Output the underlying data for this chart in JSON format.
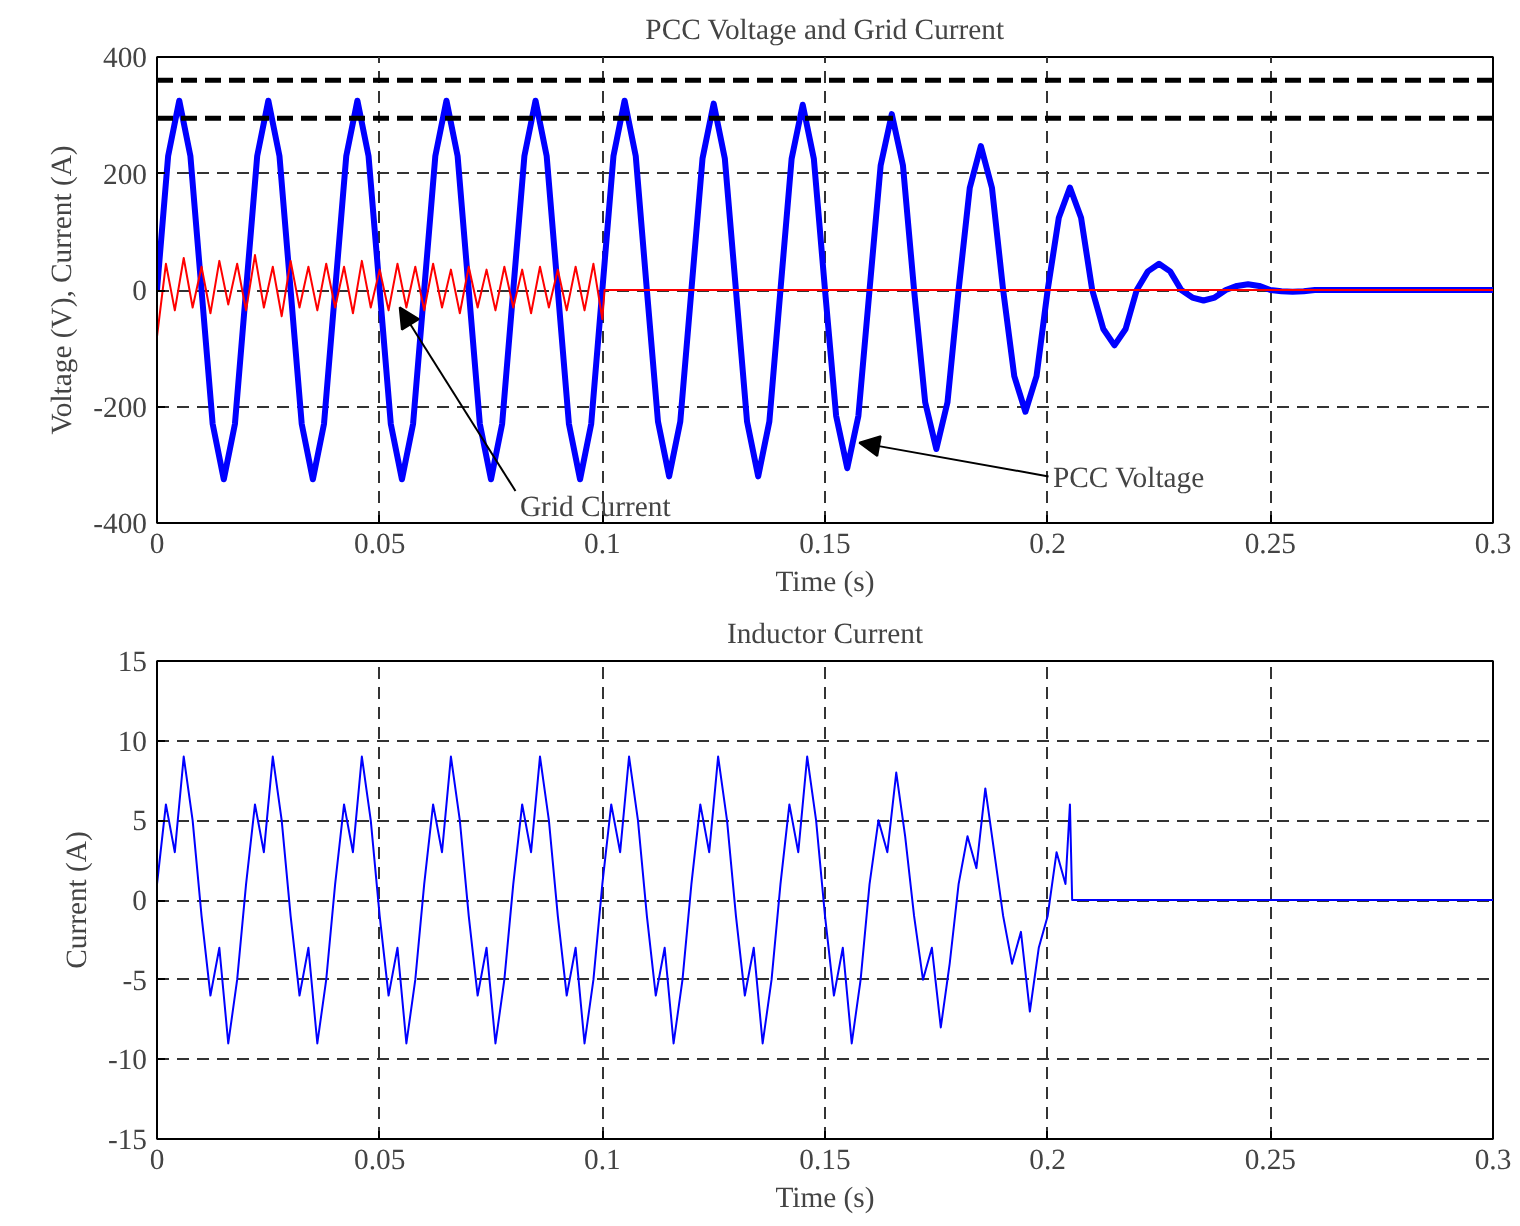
{
  "chart_data": [
    {
      "type": "line",
      "title": "PCC Voltage and Grid Current",
      "xlabel": "Time (s)",
      "ylabel": "Voltage (V), Current (A)",
      "xlim": [
        0,
        0.3
      ],
      "xticks": [
        0,
        0.05,
        0.1,
        0.15,
        0.2,
        0.25,
        0.3
      ],
      "ylim": [
        -400,
        400
      ],
      "yticks": [
        -400,
        -200,
        0,
        200,
        400
      ],
      "grid": true,
      "line_style": "solid",
      "marker": "none",
      "series": [
        {
          "color": "#ff0000",
          "x": [
            0,
            0.002,
            0.004,
            0.006,
            0.008,
            0.01,
            0.012,
            0.014,
            0.016,
            0.018,
            0.02,
            0.022,
            0.024,
            0.026,
            0.028,
            0.03,
            0.032,
            0.034,
            0.036,
            0.038,
            0.04,
            0.042,
            0.044,
            0.046,
            0.048,
            0.05,
            0.052,
            0.054,
            0.056,
            0.058,
            0.06,
            0.062,
            0.064,
            0.066,
            0.068,
            0.07,
            0.072,
            0.074,
            0.076,
            0.078,
            0.08,
            0.082,
            0.084,
            0.086,
            0.088,
            0.09,
            0.092,
            0.094,
            0.096,
            0.098,
            0.1,
            0.1005,
            0.3
          ],
          "values": [
            -80,
            45,
            -35,
            55,
            -30,
            40,
            -40,
            50,
            -25,
            45,
            -35,
            60,
            -30,
            40,
            -45,
            50,
            -30,
            40,
            -35,
            45,
            -30,
            40,
            -40,
            50,
            -30,
            35,
            -35,
            45,
            -30,
            40,
            -35,
            45,
            -30,
            35,
            -40,
            40,
            -30,
            35,
            -35,
            40,
            -30,
            35,
            -40,
            40,
            -30,
            35,
            -35,
            40,
            -35,
            45,
            -50,
            0,
            0
          ]
        },
        {
          "color": "#0000ff",
          "x": [
            0,
            0.0025,
            0.005,
            0.0075,
            0.01,
            0.0125,
            0.015,
            0.0175,
            0.02,
            0.0225,
            0.025,
            0.0275,
            0.03,
            0.0325,
            0.035,
            0.0375,
            0.04,
            0.0425,
            0.045,
            0.0475,
            0.05,
            0.0525,
            0.055,
            0.0575,
            0.06,
            0.0625,
            0.065,
            0.0675,
            0.07,
            0.0725,
            0.075,
            0.0775,
            0.08,
            0.0825,
            0.085,
            0.0875,
            0.09,
            0.0925,
            0.095,
            0.0975,
            0.1,
            0.1025,
            0.105,
            0.1075,
            0.11,
            0.1125,
            0.115,
            0.1175,
            0.12,
            0.1225,
            0.125,
            0.1275,
            0.13,
            0.1325,
            0.135,
            0.1375,
            0.14,
            0.1425,
            0.145,
            0.1475,
            0.15,
            0.1525,
            0.155,
            0.1575,
            0.16,
            0.1625,
            0.165,
            0.1675,
            0.17,
            0.1725,
            0.175,
            0.1775,
            0.18,
            0.1825,
            0.185,
            0.1875,
            0.19,
            0.1925,
            0.195,
            0.1975,
            0.2,
            0.2025,
            0.205,
            0.2075,
            0.21,
            0.2125,
            0.215,
            0.2175,
            0.22,
            0.2225,
            0.225,
            0.2275,
            0.23,
            0.2325,
            0.235,
            0.2375,
            0.24,
            0.2425,
            0.245,
            0.2475,
            0.25,
            0.2525,
            0.255,
            0.2575,
            0.26,
            0.3
          ],
          "values": [
            0,
            230,
            325,
            230,
            0,
            -230,
            -325,
            -230,
            0,
            230,
            325,
            230,
            0,
            -230,
            -325,
            -230,
            0,
            230,
            325,
            230,
            0,
            -230,
            -325,
            -230,
            0,
            230,
            325,
            230,
            0,
            -230,
            -325,
            -230,
            0,
            230,
            325,
            230,
            0,
            -230,
            -325,
            -230,
            0,
            230,
            325,
            230,
            0,
            -226,
            -320,
            -226,
            0,
            226,
            320,
            226,
            0,
            -226,
            -320,
            -226,
            0,
            225,
            318,
            225,
            0,
            -216,
            -306,
            -216,
            0,
            214,
            302,
            214,
            0,
            -193,
            -273,
            -193,
            0,
            175,
            247,
            175,
            0,
            -148,
            -209,
            -148,
            0,
            124,
            176,
            124,
            0,
            -67,
            -95,
            -67,
            0,
            32,
            45,
            32,
            0,
            -13,
            -18,
            -13,
            0,
            7,
            10,
            7,
            0,
            -2,
            -3,
            -2,
            0,
            0
          ]
        }
      ],
      "ref_lines": [
        {
          "axis": "y",
          "value": 360,
          "color": "#000000",
          "line_style": "dashed"
        },
        {
          "axis": "y",
          "value": 295,
          "color": "#000000",
          "line_style": "dashed"
        }
      ],
      "annotations": [
        {
          "text": "Grid Current",
          "x": 0.0545,
          "y": -30
        },
        {
          "text": "PCC Voltage",
          "x": 0.1577,
          "y": -262
        }
      ]
    },
    {
      "type": "line",
      "title": "Inductor Current",
      "xlabel": "Time (s)",
      "ylabel": "Current (A)",
      "xlim": [
        0,
        0.3
      ],
      "xticks": [
        0,
        0.05,
        0.1,
        0.15,
        0.2,
        0.25,
        0.3
      ],
      "ylim": [
        -15,
        15
      ],
      "yticks": [
        -15,
        -10,
        -5,
        0,
        5,
        10,
        15
      ],
      "grid": true,
      "line_style": "solid",
      "marker": "none",
      "series": [
        {
          "color": "#0000ff",
          "x": [
            0,
            0.002,
            0.004,
            0.006,
            0.008,
            0.01,
            0.012,
            0.014,
            0.016,
            0.018,
            0.02,
            0.022,
            0.024,
            0.026,
            0.028,
            0.03,
            0.032,
            0.034,
            0.036,
            0.038,
            0.04,
            0.042,
            0.044,
            0.046,
            0.048,
            0.05,
            0.052,
            0.054,
            0.056,
            0.058,
            0.06,
            0.062,
            0.064,
            0.066,
            0.068,
            0.07,
            0.072,
            0.074,
            0.076,
            0.078,
            0.08,
            0.082,
            0.084,
            0.086,
            0.088,
            0.09,
            0.092,
            0.094,
            0.096,
            0.098,
            0.1,
            0.102,
            0.104,
            0.106,
            0.108,
            0.11,
            0.112,
            0.114,
            0.116,
            0.118,
            0.12,
            0.122,
            0.124,
            0.126,
            0.128,
            0.13,
            0.132,
            0.134,
            0.136,
            0.138,
            0.14,
            0.142,
            0.144,
            0.146,
            0.148,
            0.15,
            0.152,
            0.154,
            0.156,
            0.158,
            0.16,
            0.162,
            0.164,
            0.166,
            0.168,
            0.17,
            0.172,
            0.174,
            0.176,
            0.178,
            0.18,
            0.182,
            0.184,
            0.186,
            0.188,
            0.19,
            0.192,
            0.194,
            0.196,
            0.198,
            0.2,
            0.202,
            0.204,
            0.205,
            0.2055,
            0.3
          ],
          "values": [
            1,
            6,
            3,
            9,
            5,
            -1,
            -6,
            -3,
            -9,
            -5,
            1,
            6,
            3,
            9,
            5,
            -1,
            -6,
            -3,
            -9,
            -5,
            1,
            6,
            3,
            9,
            5,
            -1,
            -6,
            -3,
            -9,
            -5,
            1,
            6,
            3,
            9,
            5,
            -1,
            -6,
            -3,
            -9,
            -5,
            1,
            6,
            3,
            9,
            5,
            -1,
            -6,
            -3,
            -9,
            -5,
            1,
            6,
            3,
            9,
            5,
            -1,
            -6,
            -3,
            -9,
            -5,
            1,
            6,
            3,
            9,
            5,
            -1,
            -6,
            -3,
            -9,
            -5,
            1,
            6,
            3,
            9,
            5,
            -1,
            -6,
            -3,
            -9,
            -5,
            1,
            5,
            3,
            8,
            4,
            -1,
            -5,
            -3,
            -8,
            -4,
            1,
            4,
            2,
            7,
            3,
            -1,
            -4,
            -2,
            -7,
            -3,
            -1,
            3,
            1,
            6,
            0,
            0
          ]
        }
      ]
    }
  ]
}
